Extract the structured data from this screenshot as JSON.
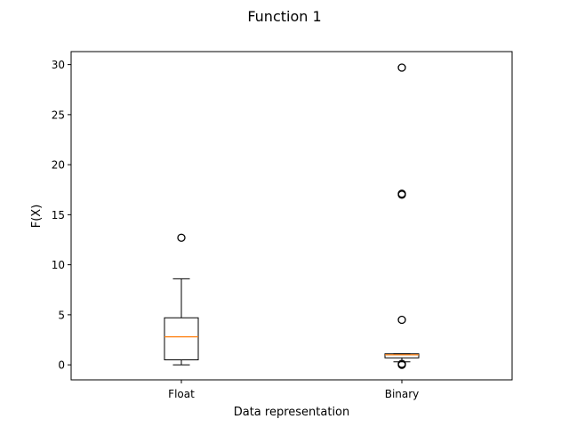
{
  "chart_data": {
    "type": "box",
    "title": "Function 1",
    "xlabel": "Data representation",
    "ylabel": "F(X)",
    "ylim": [
      -1.5,
      31.3
    ],
    "yticks": [
      0,
      5,
      10,
      15,
      20,
      25,
      30
    ],
    "categories": [
      "Float",
      "Binary"
    ],
    "boxes": [
      {
        "label": "Float",
        "whisker_low": 0.0,
        "q1": 0.5,
        "median": 2.8,
        "q3": 4.7,
        "whisker_high": 8.6,
        "fliers": [
          12.7
        ]
      },
      {
        "label": "Binary",
        "whisker_low": 0.3,
        "q1": 0.7,
        "median": 1.0,
        "q3": 1.1,
        "whisker_high": 1.1,
        "fliers": [
          0.0,
          0.1,
          4.5,
          17.0,
          17.1,
          29.7
        ]
      }
    ],
    "colors": {
      "box": "#000000",
      "median": "#ff7f0e"
    },
    "grid": false,
    "legend": "none"
  }
}
